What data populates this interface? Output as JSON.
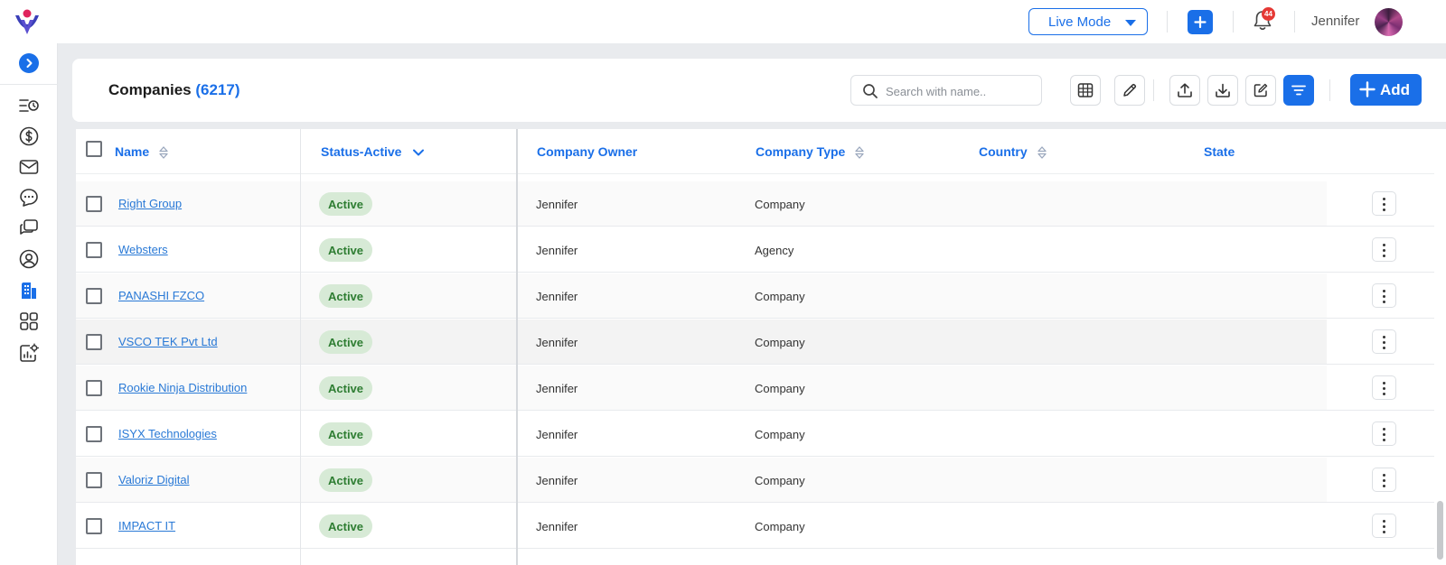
{
  "topbar": {
    "mode_label": "Live Mode",
    "notification_count": "44",
    "user_name": "Jennifer"
  },
  "sidebar": {
    "icons": [
      "list-clock-icon",
      "dollar-icon",
      "mail-icon",
      "chat-icon",
      "chat-bubbles-icon",
      "user-circle-icon",
      "building-icon",
      "grid-icon",
      "report-settings-icon"
    ],
    "active": "building-icon"
  },
  "page": {
    "title": "Companies",
    "count": "(6217)",
    "search_placeholder": "Search with name..",
    "add_label": "Add"
  },
  "table": {
    "columns": {
      "name": "Name",
      "status": "Status-Active",
      "owner": "Company Owner",
      "type": "Company Type",
      "country": "Country",
      "state": "State"
    },
    "rows": [
      {
        "name": "Right Group",
        "status": "Active",
        "owner": "Jennifer",
        "type": "Company"
      },
      {
        "name": "Websters",
        "status": "Active",
        "owner": "Jennifer",
        "type": "Agency"
      },
      {
        "name": "PANASHI FZCO",
        "status": "Active",
        "owner": "Jennifer",
        "type": "Company"
      },
      {
        "name": "VSCO TEK Pvt Ltd",
        "status": "Active",
        "owner": "Jennifer",
        "type": "Company"
      },
      {
        "name": "Rookie Ninja Distribution",
        "status": "Active",
        "owner": "Jennifer",
        "type": "Company"
      },
      {
        "name": "ISYX Technologies",
        "status": "Active",
        "owner": "Jennifer",
        "type": "Company"
      },
      {
        "name": "Valoriz Digital",
        "status": "Active",
        "owner": "Jennifer",
        "type": "Company"
      },
      {
        "name": "IMPACT IT",
        "status": "Active",
        "owner": "Jennifer",
        "type": "Company"
      }
    ]
  },
  "colors": {
    "accent": "#1a6fe8",
    "status_bg": "#d7ead6",
    "status_text": "#2e7d32",
    "badge": "#e53935"
  }
}
